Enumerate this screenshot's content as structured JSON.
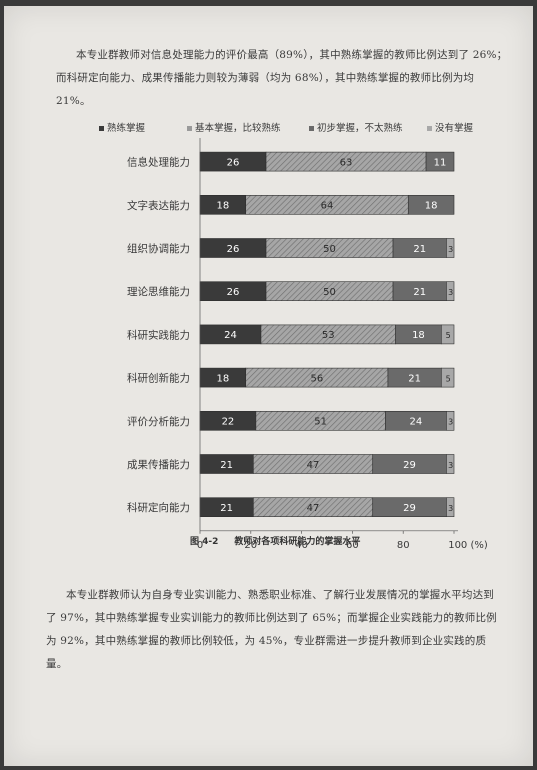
{
  "paragraph_top": "本专业群教师对信息处理能力的评价最高（89%），其中熟练掌握的教师比例达到了 26%；而科研定向能力、成果传播能力则较为薄弱（均为 68%），其中熟练掌握的教师比例为均 21%。",
  "caption": {
    "figure": "图 4-2",
    "title": "教师对各项科研能力的掌握水平"
  },
  "chart_data": {
    "type": "bar",
    "orientation": "horizontal",
    "stacked": true,
    "categories": [
      "信息处理能力",
      "文字表达能力",
      "组织协调能力",
      "理论思维能力",
      "科研实践能力",
      "科研创新能力",
      "评价分析能力",
      "成果传播能力",
      "科研定向能力"
    ],
    "series": [
      {
        "name": "熟练掌握",
        "values": [
          26,
          18,
          26,
          26,
          24,
          18,
          22,
          21,
          21
        ],
        "color": "#3a3a3a"
      },
      {
        "name": "基本掌握，比较熟练",
        "values": [
          63,
          64,
          50,
          50,
          53,
          56,
          51,
          47,
          47
        ],
        "color": "#9a9a9a",
        "pattern": "hatch"
      },
      {
        "name": "初步掌握，不太熟练",
        "values": [
          11,
          18,
          21,
          21,
          18,
          21,
          24,
          29,
          29
        ],
        "color": "#6a6a6a"
      },
      {
        "name": "没有掌握",
        "values": [
          null,
          null,
          3,
          3,
          5,
          5,
          3,
          3,
          3
        ],
        "color": "#a8a8a8"
      }
    ],
    "x_ticks": [
      "0",
      "20",
      "40",
      "60",
      "80",
      "100 (%)"
    ],
    "xlim": [
      0,
      100
    ],
    "legend_position": "top"
  },
  "paragraph_bottom": "本专业群教师认为自身专业实训能力、熟悉职业标准、了解行业发展情况的掌握水平均达到了 97%，其中熟练掌握专业实训能力的教师比例达到了 65%；而掌握企业实践能力的教师比例为 92%，其中熟练掌握的教师比例较低，为 45%，专业群需进一步提升教师到企业实践的质量。"
}
